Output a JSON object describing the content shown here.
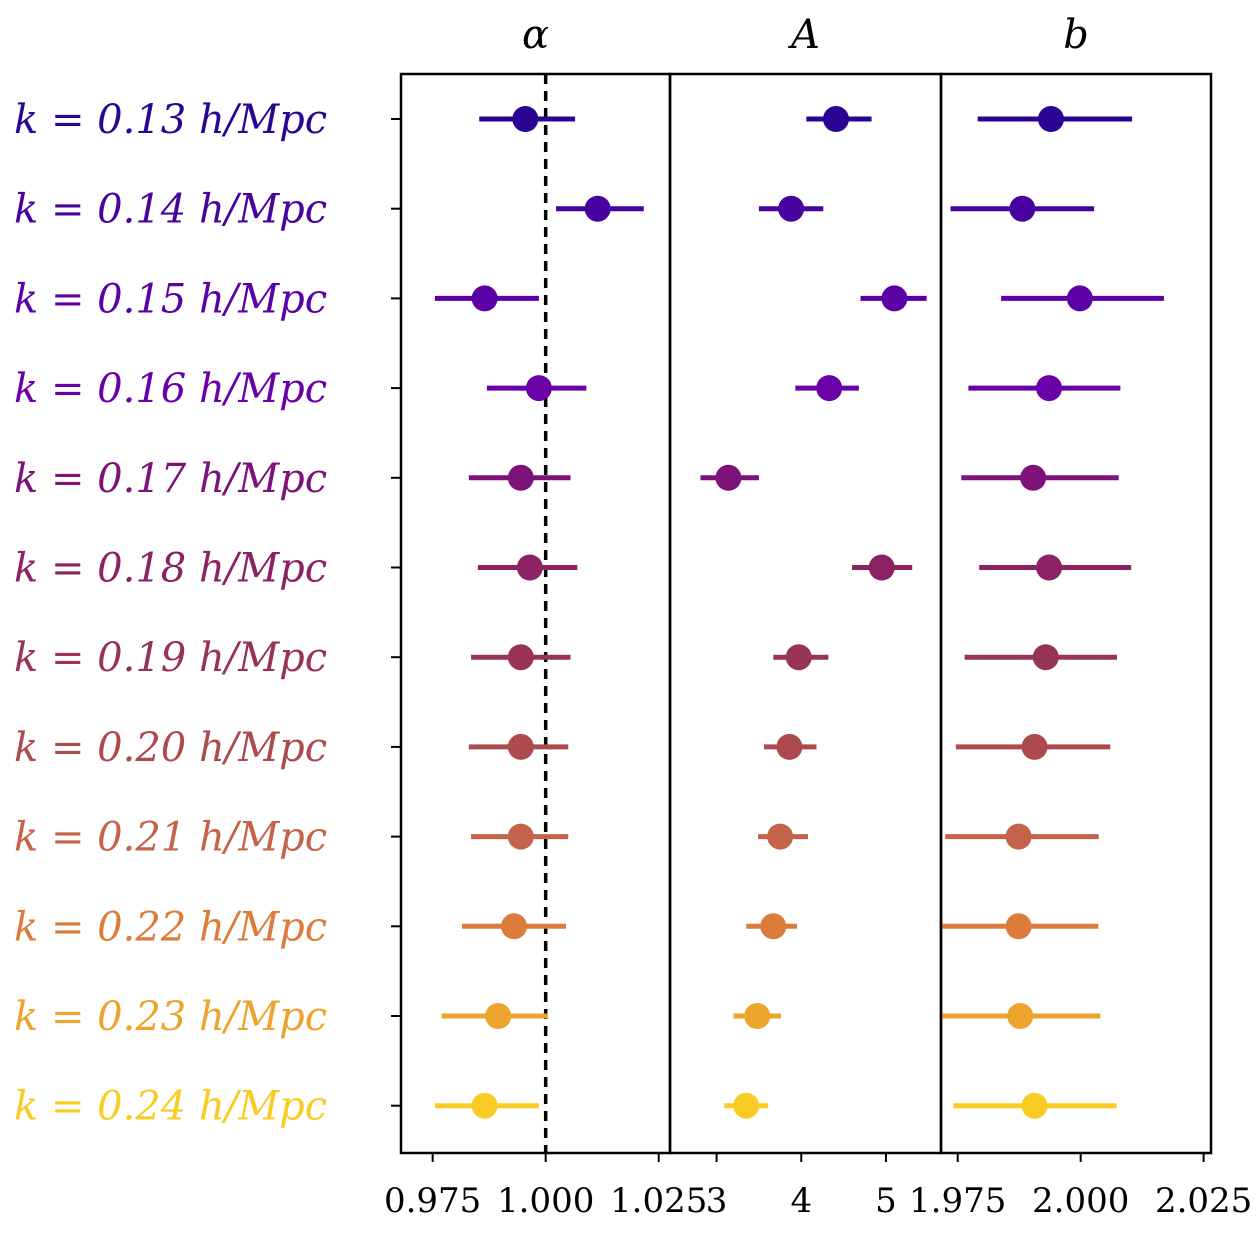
{
  "chart_data": {
    "type": "scatter",
    "rows": [
      {
        "label": "k = 0.13 h/Mpc",
        "color": "#2a0593"
      },
      {
        "label": "k = 0.14 h/Mpc",
        "color": "#46039f"
      },
      {
        "label": "k = 0.15 h/Mpc",
        "color": "#5c01a6"
      },
      {
        "label": "k = 0.16 h/Mpc",
        "color": "#6a00a8"
      },
      {
        "label": "k = 0.17 h/Mpc",
        "color": "#7d1279"
      },
      {
        "label": "k = 0.18 h/Mpc",
        "color": "#8a2263"
      },
      {
        "label": "k = 0.19 h/Mpc",
        "color": "#983358"
      },
      {
        "label": "k = 0.20 h/Mpc",
        "color": "#ad4a4d"
      },
      {
        "label": "k = 0.21 h/Mpc",
        "color": "#c4634a"
      },
      {
        "label": "k = 0.22 h/Mpc",
        "color": "#dd7c3a"
      },
      {
        "label": "k = 0.23 h/Mpc",
        "color": "#eca42c"
      },
      {
        "label": "k = 0.24 h/Mpc",
        "color": "#f9cc25"
      }
    ],
    "panels": [
      {
        "title": "α",
        "xlim": [
          0.968,
          1.0275
        ],
        "ticks": [
          0.975,
          1.0,
          1.025
        ],
        "tick_labels": [
          "0.975",
          "1.000",
          "1.025"
        ],
        "reference_line": 1.0,
        "values": [
          0.9955,
          1.0115,
          0.9865,
          0.9985,
          0.9945,
          0.9965,
          0.9945,
          0.9945,
          0.9945,
          0.993,
          0.9895,
          0.9865
        ],
        "err_lo": [
          0.0102,
          0.0092,
          0.011,
          0.0115,
          0.0115,
          0.0115,
          0.011,
          0.0115,
          0.011,
          0.0115,
          0.0125,
          0.011
        ],
        "err_hi": [
          0.011,
          0.0102,
          0.012,
          0.0105,
          0.011,
          0.0105,
          0.011,
          0.0105,
          0.0105,
          0.0115,
          0.011,
          0.012
        ]
      },
      {
        "title": "A",
        "xlim": [
          2.45,
          5.65
        ],
        "ticks": [
          3,
          4,
          5
        ],
        "tick_labels": [
          "3",
          "4",
          "5"
        ],
        "values": [
          4.41,
          3.88,
          5.1,
          4.33,
          3.14,
          4.95,
          3.97,
          3.86,
          3.75,
          3.67,
          3.48,
          3.35
        ],
        "err_lo": [
          0.35,
          0.38,
          0.4,
          0.4,
          0.33,
          0.35,
          0.3,
          0.3,
          0.26,
          0.32,
          0.28,
          0.26
        ],
        "err_hi": [
          0.42,
          0.38,
          0.38,
          0.35,
          0.36,
          0.36,
          0.35,
          0.32,
          0.33,
          0.28,
          0.28,
          0.26
        ]
      },
      {
        "title": "b",
        "xlim": [
          1.9716,
          2.0265
        ],
        "ticks": [
          1.975,
          2.0,
          2.025
        ],
        "tick_labels": [
          "1.975",
          "2.000",
          "2.025"
        ],
        "values": [
          1.99396,
          1.98814,
          1.99983,
          1.99357,
          1.99033,
          1.99357,
          1.9929,
          1.99062,
          1.98738,
          1.98738,
          1.98771,
          1.99062
        ],
        "err_lo": [
          0.0149,
          0.0146,
          0.016,
          0.0164,
          0.0146,
          0.0142,
          0.0165,
          0.016,
          0.0149,
          0.0159,
          0.0162,
          0.0165
        ],
        "err_hi": [
          0.0165,
          0.0146,
          0.0171,
          0.0145,
          0.0174,
          0.0167,
          0.0145,
          0.0154,
          0.0163,
          0.0162,
          0.0163,
          0.0167
        ]
      }
    ]
  }
}
